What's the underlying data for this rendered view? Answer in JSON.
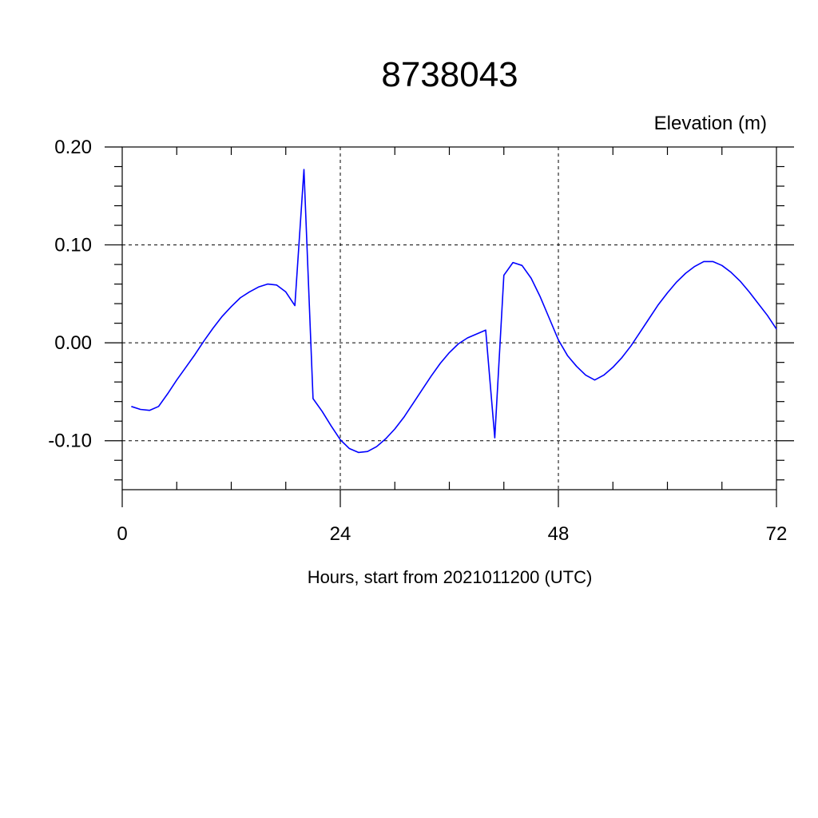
{
  "chart_data": {
    "type": "line",
    "title": "8738043",
    "ylabel": "Elevation (m)",
    "xlabel": "Hours, start from 2021011200 (UTC)",
    "xlim": [
      0,
      72
    ],
    "ylim": [
      -0.15,
      0.2
    ],
    "x_ticks": [
      0,
      24,
      48,
      72
    ],
    "x_tick_labels": [
      "0",
      "24",
      "48",
      "72"
    ],
    "y_ticks": [
      -0.1,
      0.0,
      0.1,
      0.2
    ],
    "y_tick_labels": [
      "-0.10",
      "0.00",
      "0.10",
      "0.20"
    ],
    "grid": true,
    "series": [
      {
        "color": "#0000ff",
        "x": [
          1,
          2,
          3,
          4,
          5,
          6,
          7,
          8,
          9,
          10,
          11,
          12,
          13,
          14,
          15,
          16,
          17,
          18,
          19,
          20,
          21,
          22,
          23,
          24,
          25,
          26,
          27,
          28,
          29,
          30,
          31,
          32,
          33,
          34,
          35,
          36,
          37,
          38,
          39,
          40,
          41,
          42,
          43,
          44,
          45,
          46,
          47,
          48,
          49,
          50,
          51,
          52,
          53,
          54,
          55,
          56,
          57,
          58,
          59,
          60,
          61,
          62,
          63,
          64,
          65,
          66,
          67,
          68,
          69,
          70,
          71,
          72
        ],
        "y": [
          -0.065,
          -0.068,
          -0.069,
          -0.065,
          -0.052,
          -0.038,
          -0.025,
          -0.012,
          0.002,
          0.015,
          0.027,
          0.037,
          0.046,
          0.052,
          0.057,
          0.06,
          0.059,
          0.052,
          0.038,
          0.177,
          -0.057,
          -0.07,
          -0.085,
          -0.099,
          -0.108,
          -0.112,
          -0.111,
          -0.106,
          -0.098,
          -0.088,
          -0.076,
          -0.062,
          -0.048,
          -0.034,
          -0.021,
          -0.01,
          -0.001,
          0.005,
          0.009,
          0.013,
          -0.097,
          0.069,
          0.082,
          0.079,
          0.066,
          0.047,
          0.025,
          0.003,
          -0.013,
          -0.024,
          -0.033,
          -0.038,
          -0.033,
          -0.025,
          -0.015,
          -0.003,
          0.011,
          0.025,
          0.039,
          0.051,
          0.062,
          0.071,
          0.078,
          0.083,
          0.083,
          0.079,
          0.072,
          0.063,
          0.052,
          0.04,
          0.028,
          0.014
        ]
      }
    ]
  }
}
